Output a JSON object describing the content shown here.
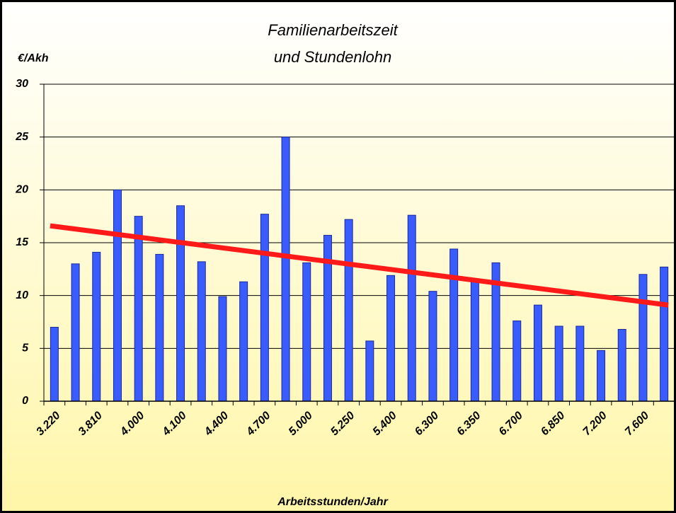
{
  "chart_data": {
    "type": "bar",
    "title": [
      "Familienarbeitszeit",
      "und Stundenlohn"
    ],
    "y_label": "€/Akh",
    "x_label": "Arbeitsstunden/Jahr",
    "categories": [
      "3.220",
      null,
      "3.810",
      null,
      "4.000",
      null,
      "4.100",
      null,
      "4.400",
      null,
      "4.700",
      null,
      "5.000",
      null,
      "5.250",
      null,
      "5.400",
      null,
      "6.300",
      null,
      "6.350",
      null,
      "6.700",
      null,
      "6.850",
      null,
      "7.200",
      null,
      "7.600",
      null
    ],
    "values": [
      7,
      13,
      14.1,
      20,
      17.5,
      13.9,
      18.5,
      13.2,
      9.9,
      11.3,
      17.7,
      25,
      13.1,
      15.7,
      17.2,
      5.7,
      11.9,
      17.6,
      10.4,
      14.4,
      11.3,
      13.1,
      7.6,
      9.1,
      7.1,
      7.1,
      4.8,
      6.8,
      12,
      12.7
    ],
    "color": "#3a5cff",
    "trendline": {
      "color": "#ff1a1a",
      "values": [
        16.6,
        9.1
      ]
    },
    "ylim": [
      0,
      30
    ],
    "yticks": [
      0,
      5,
      10,
      15,
      20,
      25,
      30
    ],
    "grid": true
  }
}
